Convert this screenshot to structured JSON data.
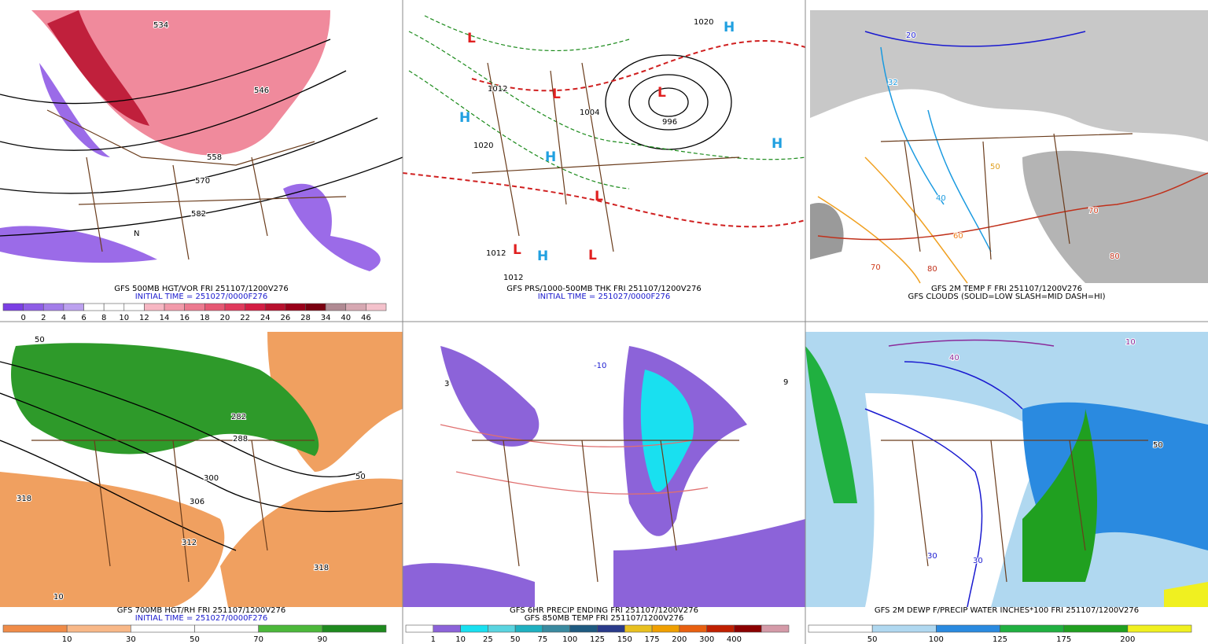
{
  "panels": [
    {
      "caption": [
        "GFS 500MB HGT/VOR FRI 251107/1200V276",
        "INITIAL TIME = 251027/0000F276"
      ],
      "colorbar": {
        "labels": [
          "0",
          "2",
          "4",
          "6",
          "8",
          "10",
          "12",
          "14",
          "16",
          "18",
          "20",
          "22",
          "24",
          "26",
          "28",
          "34",
          "40",
          "46"
        ],
        "colors": [
          "#7b3fe4",
          "#8e5de6",
          "#a27de9",
          "#bca1ef",
          "#ffffff",
          "#ffffff",
          "#ffffff",
          "#f7b7c3",
          "#f29aaa",
          "#ec7a8f",
          "#e65873",
          "#e03a5c",
          "#d41d43",
          "#b8102e",
          "#99001a",
          "#7a0010",
          "#b08a93",
          "#d6a8b2",
          "#f4c2cc"
        ]
      },
      "map_labels": [
        "534",
        "546",
        "558",
        "570",
        "582",
        "N"
      ]
    },
    {
      "caption": [
        "GFS PRS/1000-500MB THK FRI 251107/1200V276",
        "INITIAL TIME = 251027/0000F276"
      ],
      "map_labels": [
        "L",
        "L",
        "L",
        "L",
        "L",
        "L",
        "H",
        "H",
        "H",
        "H",
        "H",
        "1012",
        "1004",
        "996",
        "1020",
        "1020",
        "1012",
        "1012"
      ]
    },
    {
      "caption": [
        "GFS 2M TEMP F FRI 251107/1200V276",
        "GFS CLOUDS (SOLID=LOW SLASH=MID DASH=HI)"
      ],
      "map_labels": [
        "20",
        "32",
        "40",
        "50",
        "60",
        "70",
        "80",
        "70",
        "80"
      ]
    },
    {
      "caption": [
        "GFS 700MB HGT/RH FRI 251107/1200V276",
        "INITIAL TIME = 251027/0000F276"
      ],
      "colorbar": {
        "labels": [
          "10",
          "30",
          "50",
          "70",
          "90"
        ],
        "colors": [
          "#f08c48",
          "#f8b888",
          "#ffffff",
          "#ffffff",
          "#4cb83a",
          "#1e8a1e"
        ]
      },
      "map_labels": [
        "50",
        "282",
        "288",
        "300",
        "306",
        "312",
        "318",
        "318",
        "50",
        "10"
      ]
    },
    {
      "caption": [
        "GFS 6HR PRECIP ENDING FRI 251107/1200V276",
        "GFS 850MB TEMP FRI 251107/1200V276"
      ],
      "colorbar": {
        "labels": [
          "1",
          "10",
          "25",
          "50",
          "75",
          "100",
          "125",
          "150",
          "175",
          "200",
          "300",
          "400"
        ],
        "colors": [
          "#ffffff",
          "#8c63d9",
          "#19e0f0",
          "#5ad4e0",
          "#1fb0c0",
          "#3a8aa0",
          "#1e5a80",
          "#2a3a8a",
          "#e8c020",
          "#f0a000",
          "#e86010",
          "#c02000",
          "#8b0000",
          "#d49aa8"
        ]
      },
      "map_labels": [
        "-10",
        "9",
        "3"
      ]
    },
    {
      "caption": [
        "GFS 2M DEWP F/PRECIP WATER INCHES*100 FRI 251107/1200V276"
      ],
      "colorbar": {
        "labels": [
          "50",
          "100",
          "125",
          "175",
          "200"
        ],
        "colors": [
          "#ffffff",
          "#b0d8f0",
          "#2a8ae0",
          "#20b040",
          "#20a020",
          "#f0f020"
        ]
      },
      "map_labels": [
        "40",
        "30",
        "50",
        "30",
        "10"
      ]
    }
  ]
}
